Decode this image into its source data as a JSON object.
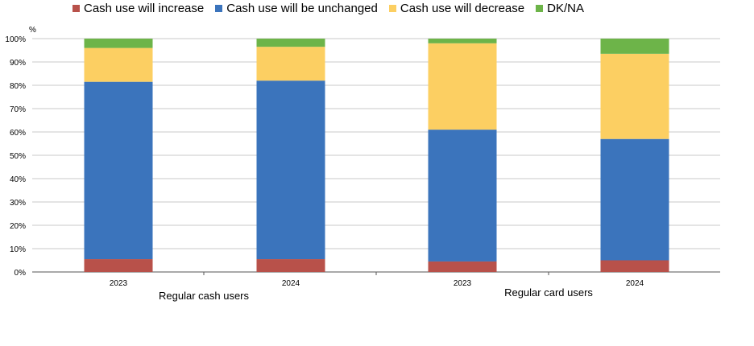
{
  "chart_data": {
    "type": "bar",
    "stacked": true,
    "y_unit": "%",
    "ylim": [
      0,
      100
    ],
    "yticks": [
      "0%",
      "10%",
      "20%",
      "30%",
      "40%",
      "50%",
      "60%",
      "70%",
      "80%",
      "90%",
      "100%"
    ],
    "grid": true,
    "legend_position": "top",
    "groups": [
      {
        "label": "Regular cash users",
        "categories": [
          "2023",
          "2024"
        ]
      },
      {
        "label": "Regular card users",
        "categories": [
          "2023",
          "2024"
        ]
      }
    ],
    "categories": [
      "2023",
      "2024",
      "2023",
      "2024"
    ],
    "series": [
      {
        "name": "Cash use will increase",
        "color": "#b8514a",
        "values": [
          5.5,
          5.5,
          4.5,
          5.0
        ]
      },
      {
        "name": "Cash use will be unchanged",
        "color": "#3b74bc",
        "values": [
          76.0,
          76.5,
          56.5,
          52.0
        ]
      },
      {
        "name": "Cash use will decrease",
        "color": "#fccf62",
        "values": [
          14.5,
          14.5,
          37.0,
          36.5
        ]
      },
      {
        "name": "DK/NA",
        "color": "#6db449",
        "values": [
          4.0,
          3.5,
          2.0,
          6.5
        ]
      }
    ]
  }
}
